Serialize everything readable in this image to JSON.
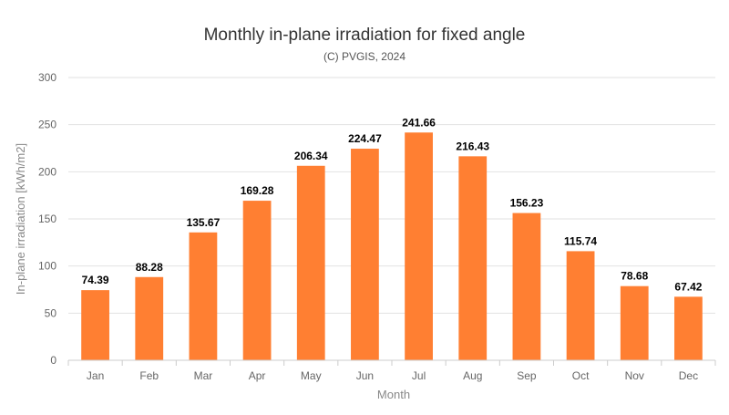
{
  "chart_data": {
    "type": "bar",
    "title": "Monthly in-plane irradiation for fixed angle",
    "subtitle": "(C) PVGIS, 2024",
    "xlabel": "Month",
    "ylabel": "In-plane irradiation [kWh/m2]",
    "categories": [
      "Jan",
      "Feb",
      "Mar",
      "Apr",
      "May",
      "Jun",
      "Jul",
      "Aug",
      "Sep",
      "Oct",
      "Nov",
      "Dec"
    ],
    "values": [
      74.39,
      88.28,
      135.67,
      169.28,
      206.34,
      224.47,
      241.66,
      216.43,
      156.23,
      115.74,
      78.68,
      67.42
    ],
    "ylim": [
      0,
      300
    ],
    "yticks": [
      0,
      50,
      100,
      150,
      200,
      250,
      300
    ],
    "grid": true,
    "bar_color": "#ff7f32"
  }
}
